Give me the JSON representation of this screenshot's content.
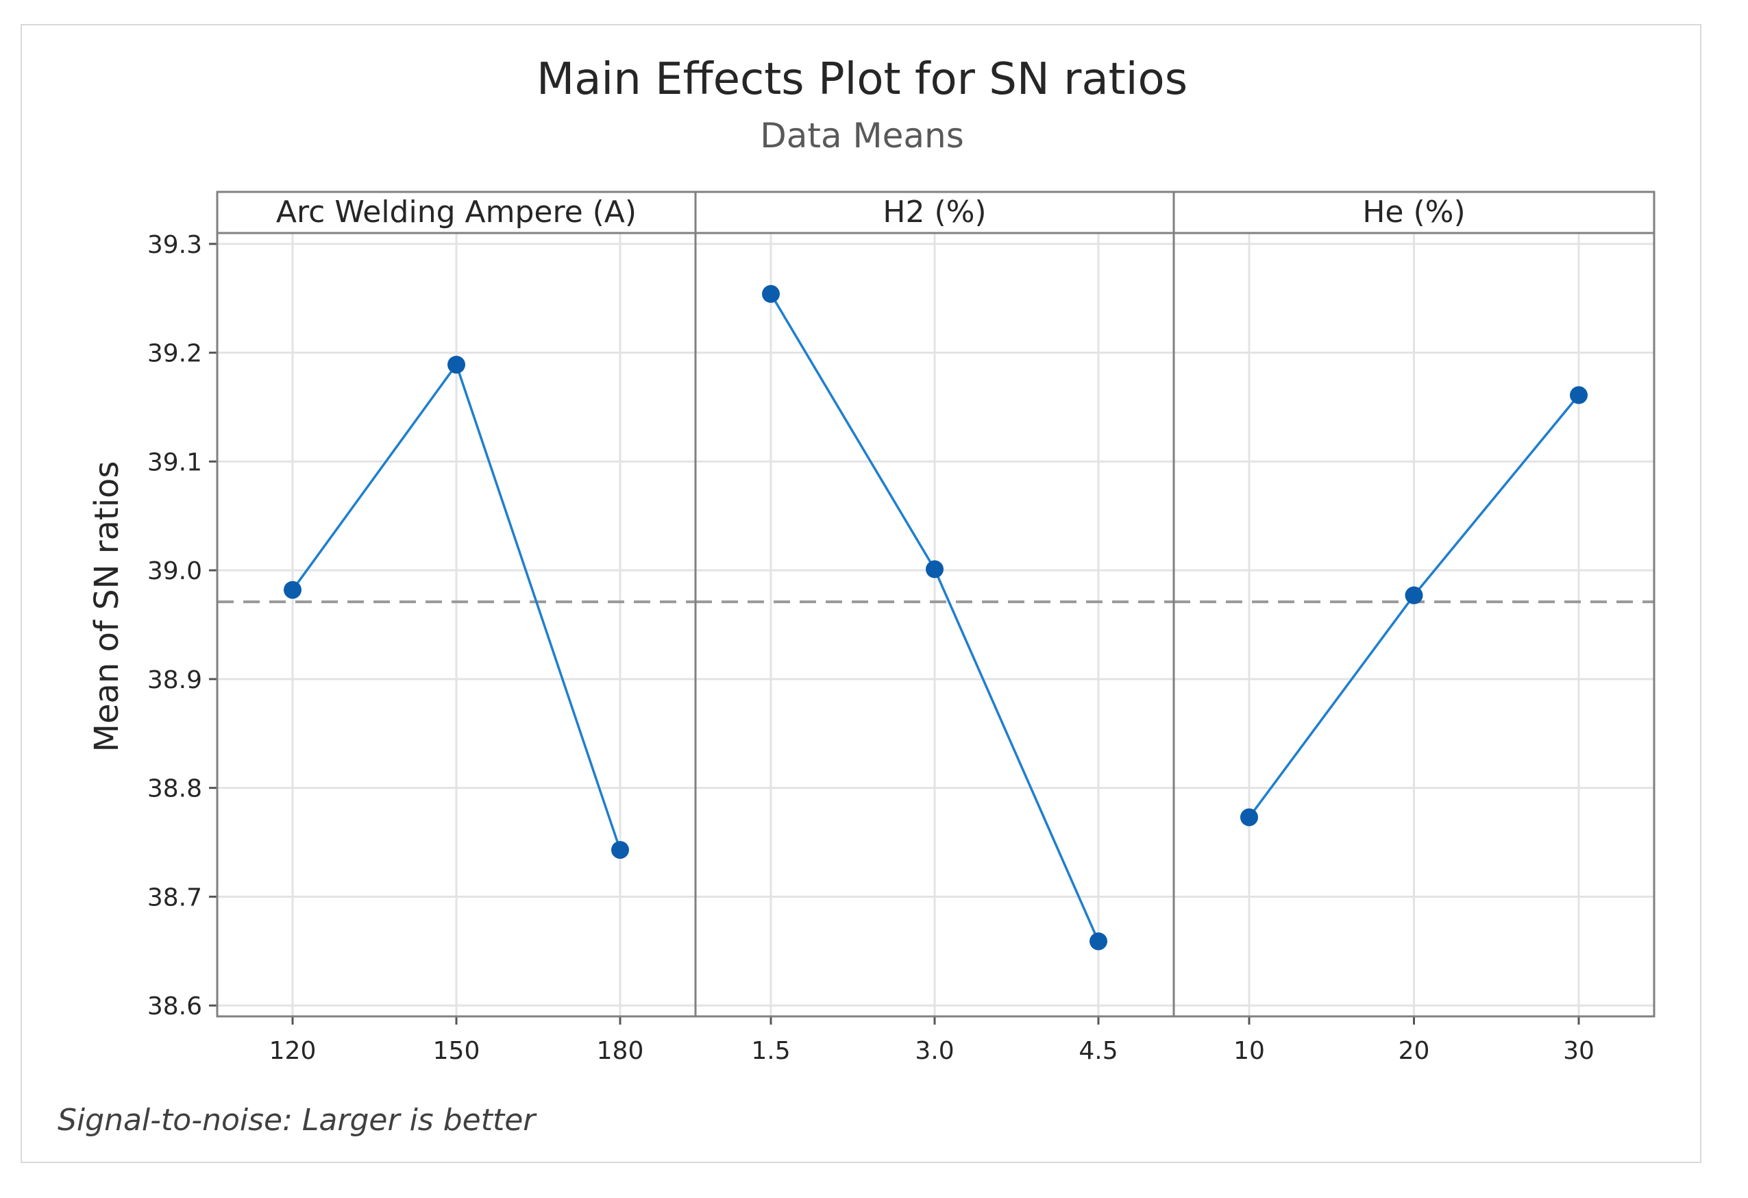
{
  "chart_data": {
    "type": "line",
    "title": "Main Effects Plot for SN ratios",
    "subtitle": "Data Means",
    "ylabel": "Mean of SN ratios",
    "ylim": [
      38.59,
      39.31
    ],
    "yticks": [
      "38.6",
      "38.7",
      "38.8",
      "38.9",
      "39.0",
      "39.1",
      "39.2",
      "39.3"
    ],
    "reference_line": 38.971,
    "grid": true,
    "footnote": "Signal-to-noise: Larger is better",
    "colors": {
      "series": "#0b5cad",
      "line": "#1f7fcf",
      "reference": "#999999",
      "grid": "#e3e3e3",
      "panel_border": "#808080"
    },
    "panels": [
      {
        "name": "Arc Welding Ampere (A)",
        "categories": [
          "120",
          "150",
          "180"
        ],
        "values": [
          38.982,
          39.189,
          38.743
        ]
      },
      {
        "name": "H2 (%)",
        "categories": [
          "1.5",
          "3.0",
          "4.5"
        ],
        "values": [
          39.254,
          39.001,
          38.659
        ]
      },
      {
        "name": "He (%)",
        "categories": [
          "10",
          "20",
          "30"
        ],
        "values": [
          38.773,
          38.977,
          39.161
        ]
      }
    ]
  }
}
